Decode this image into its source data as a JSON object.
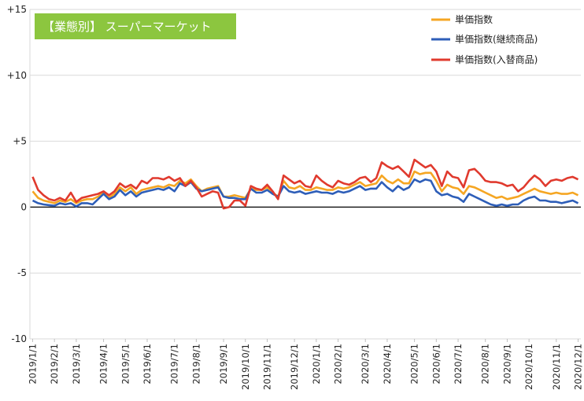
{
  "chart_data": {
    "type": "line",
    "title": "【業態別】 スーパーマーケット",
    "title_box_color": "#8cc63f",
    "ylim": [
      -10,
      15
    ],
    "yticks": [
      {
        "v": 15,
        "label": "+15"
      },
      {
        "v": 10,
        "label": "+10"
      },
      {
        "v": 5,
        "label": "+5"
      },
      {
        "v": 0,
        "label": "0"
      },
      {
        "v": -5,
        "label": "-5"
      },
      {
        "v": -10,
        "label": "-10"
      }
    ],
    "x_count": 101,
    "xticks": [
      {
        "i": 0,
        "label": "2019/1/1"
      },
      {
        "i": 4,
        "label": "2019/2/1"
      },
      {
        "i": 8,
        "label": "2019/3/1"
      },
      {
        "i": 13,
        "label": "2019/4/1"
      },
      {
        "i": 17,
        "label": "2019/5/1"
      },
      {
        "i": 21,
        "label": "2019/6/1"
      },
      {
        "i": 26,
        "label": "2019/7/1"
      },
      {
        "i": 30,
        "label": "2019/8/1"
      },
      {
        "i": 35,
        "label": "2019/9/1"
      },
      {
        "i": 39,
        "label": "2019/10/1"
      },
      {
        "i": 43,
        "label": "2019/11/1"
      },
      {
        "i": 48,
        "label": "2019/12/1"
      },
      {
        "i": 52,
        "label": "2020/1/1"
      },
      {
        "i": 56,
        "label": "2020/2/1"
      },
      {
        "i": 61,
        "label": "2020/3/1"
      },
      {
        "i": 65,
        "label": "2020/4/1"
      },
      {
        "i": 70,
        "label": "2020/5/1"
      },
      {
        "i": 74,
        "label": "2020/6/1"
      },
      {
        "i": 78,
        "label": "2020/7/1"
      },
      {
        "i": 83,
        "label": "2020/8/1"
      },
      {
        "i": 87,
        "label": "2020/9/1"
      },
      {
        "i": 91,
        "label": "2020/10/1"
      },
      {
        "i": 96,
        "label": "2020/11/1"
      },
      {
        "i": 100,
        "label": "2020/12/1"
      }
    ],
    "grid": "horizontal",
    "legend_position": "top-right",
    "series": [
      {
        "name": "単価指数",
        "color": "#f5a623",
        "values": [
          1.2,
          0.7,
          0.5,
          0.4,
          0.3,
          0.5,
          0.4,
          0.6,
          0.3,
          0.5,
          0.6,
          0.6,
          0.8,
          1.1,
          0.7,
          1.0,
          1.5,
          1.2,
          1.5,
          1.0,
          1.3,
          1.4,
          1.5,
          1.6,
          1.5,
          1.7,
          1.6,
          2.0,
          1.8,
          2.1,
          1.6,
          1.2,
          1.4,
          1.5,
          1.6,
          0.8,
          0.8,
          0.9,
          0.8,
          0.7,
          1.4,
          1.3,
          1.3,
          1.5,
          1.1,
          0.8,
          2.0,
          1.5,
          1.4,
          1.6,
          1.3,
          1.3,
          1.5,
          1.4,
          1.3,
          1.3,
          1.5,
          1.4,
          1.5,
          1.7,
          1.9,
          1.6,
          1.7,
          1.8,
          2.4,
          2.0,
          1.8,
          2.1,
          1.8,
          1.8,
          2.7,
          2.5,
          2.6,
          2.6,
          2.0,
          1.2,
          1.7,
          1.5,
          1.4,
          1.0,
          1.6,
          1.5,
          1.3,
          1.1,
          0.9,
          0.7,
          0.8,
          0.6,
          0.7,
          0.8,
          1.0,
          1.2,
          1.4,
          1.2,
          1.1,
          1.0,
          1.1,
          1.0,
          1.0,
          1.1,
          0.9
        ]
      },
      {
        "name": "単価指数(継続商品)",
        "color": "#2e5eb8",
        "values": [
          0.5,
          0.3,
          0.2,
          0.15,
          0.1,
          0.3,
          0.2,
          0.3,
          0.05,
          0.3,
          0.3,
          0.2,
          0.6,
          1.0,
          0.6,
          0.8,
          1.3,
          0.9,
          1.2,
          0.8,
          1.1,
          1.2,
          1.3,
          1.4,
          1.3,
          1.5,
          1.2,
          1.8,
          1.6,
          1.9,
          1.4,
          1.2,
          1.3,
          1.4,
          1.5,
          0.8,
          0.7,
          0.7,
          0.6,
          0.6,
          1.4,
          1.1,
          1.1,
          1.3,
          1.0,
          0.8,
          1.6,
          1.2,
          1.1,
          1.2,
          1.0,
          1.1,
          1.2,
          1.1,
          1.1,
          1.0,
          1.2,
          1.1,
          1.2,
          1.4,
          1.6,
          1.3,
          1.4,
          1.4,
          1.9,
          1.5,
          1.2,
          1.6,
          1.3,
          1.5,
          2.1,
          1.9,
          2.1,
          2.0,
          1.2,
          0.9,
          1.0,
          0.8,
          0.7,
          0.4,
          1.0,
          0.8,
          0.6,
          0.4,
          0.2,
          0.1,
          0.2,
          0.1,
          0.2,
          0.2,
          0.5,
          0.7,
          0.8,
          0.5,
          0.5,
          0.4,
          0.4,
          0.3,
          0.4,
          0.5,
          0.3
        ]
      },
      {
        "name": "単価指数(入替商品)",
        "color": "#e03a2e",
        "values": [
          2.3,
          1.3,
          0.9,
          0.6,
          0.5,
          0.7,
          0.5,
          1.1,
          0.4,
          0.7,
          0.8,
          0.9,
          1.0,
          1.2,
          0.9,
          1.2,
          1.8,
          1.5,
          1.7,
          1.4,
          2.0,
          1.8,
          2.2,
          2.2,
          2.1,
          2.3,
          2.0,
          2.2,
          1.6,
          2.0,
          1.5,
          0.8,
          1.0,
          1.2,
          1.1,
          -0.1,
          0.0,
          0.5,
          0.5,
          0.1,
          1.6,
          1.4,
          1.3,
          1.7,
          1.2,
          0.6,
          2.4,
          2.1,
          1.8,
          2.0,
          1.6,
          1.5,
          2.4,
          2.0,
          1.7,
          1.5,
          2.0,
          1.8,
          1.7,
          1.9,
          2.2,
          2.3,
          1.9,
          2.2,
          3.4,
          3.1,
          2.9,
          3.1,
          2.7,
          2.3,
          3.6,
          3.3,
          3.0,
          3.2,
          2.7,
          1.6,
          2.7,
          2.3,
          2.2,
          1.5,
          2.8,
          2.9,
          2.5,
          2.0,
          1.9,
          1.9,
          1.8,
          1.6,
          1.7,
          1.2,
          1.5,
          2.0,
          2.4,
          2.1,
          1.6,
          2.0,
          2.1,
          2.0,
          2.2,
          2.3,
          2.1
        ]
      }
    ]
  }
}
